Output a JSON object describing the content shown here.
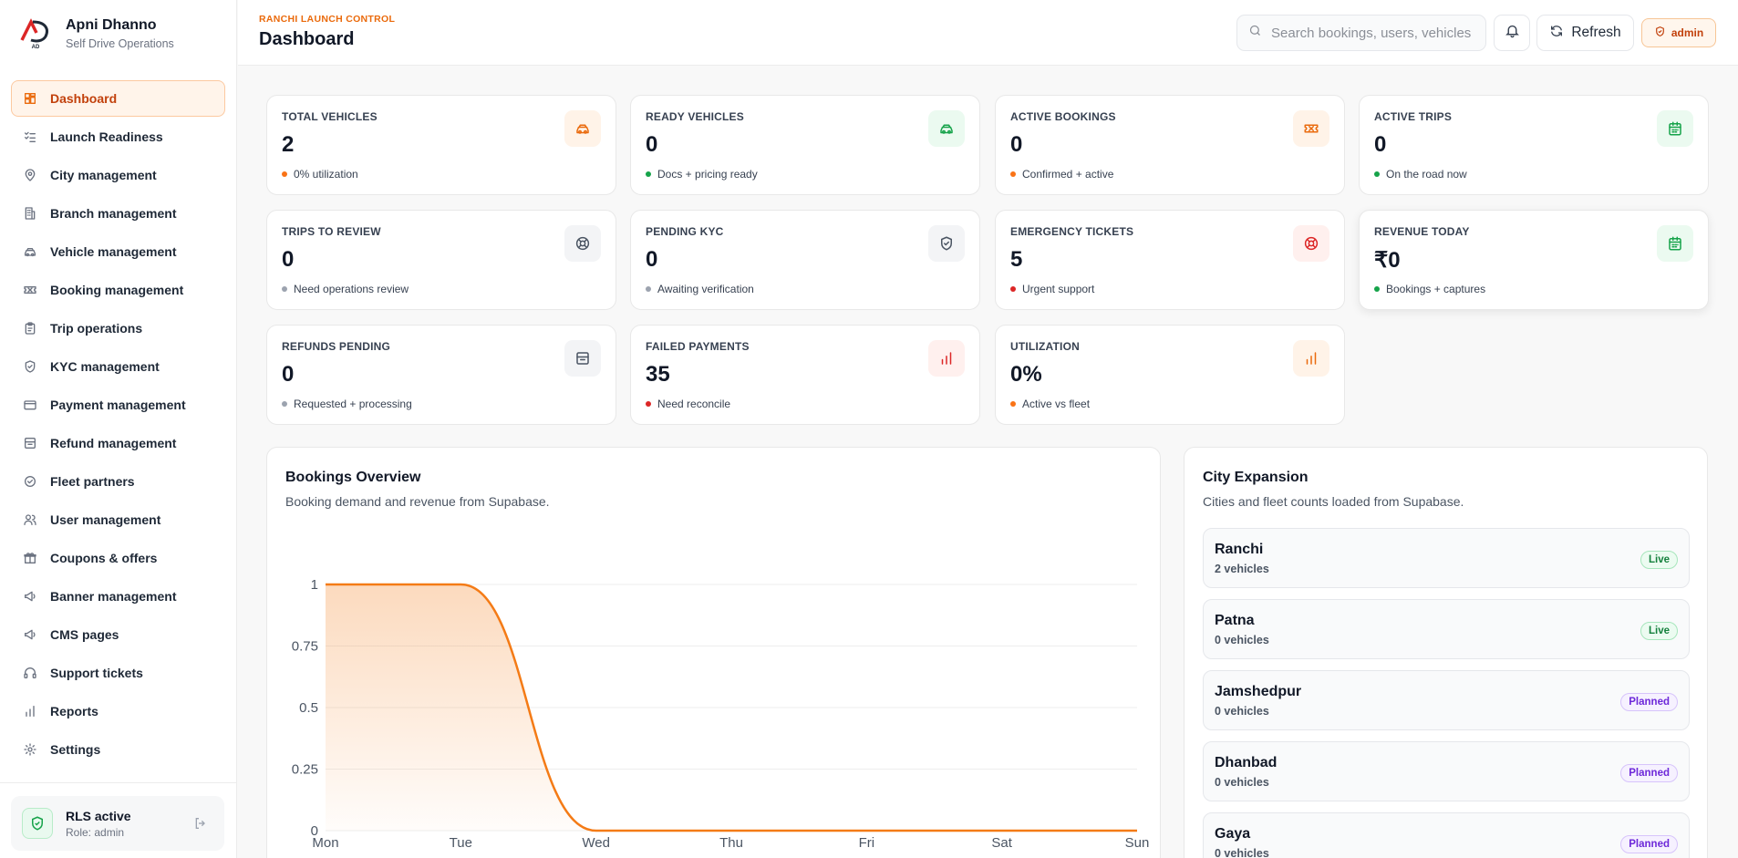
{
  "brand": {
    "name": "Apni Dhanno",
    "subtitle": "Self Drive Operations",
    "logo_text": "AD"
  },
  "sidebar": {
    "items": [
      {
        "label": "Dashboard",
        "icon": "dashboard-icon",
        "active": true
      },
      {
        "label": "Launch Readiness",
        "icon": "checklist-icon"
      },
      {
        "label": "City management",
        "icon": "map-pin-icon"
      },
      {
        "label": "Branch management",
        "icon": "building-icon"
      },
      {
        "label": "Vehicle management",
        "icon": "car-icon"
      },
      {
        "label": "Booking management",
        "icon": "ticket-icon"
      },
      {
        "label": "Trip operations",
        "icon": "clipboard-icon"
      },
      {
        "label": "KYC management",
        "icon": "shield-icon"
      },
      {
        "label": "Payment management",
        "icon": "credit-card-icon"
      },
      {
        "label": "Refund management",
        "icon": "archive-icon"
      },
      {
        "label": "Fleet partners",
        "icon": "check-circle-icon"
      },
      {
        "label": "User management",
        "icon": "users-icon"
      },
      {
        "label": "Coupons & offers",
        "icon": "gift-icon"
      },
      {
        "label": "Banner management",
        "icon": "megaphone-icon"
      },
      {
        "label": "CMS pages",
        "icon": "megaphone-icon"
      },
      {
        "label": "Support tickets",
        "icon": "headphones-icon"
      },
      {
        "label": "Reports",
        "icon": "bar-chart-icon"
      },
      {
        "label": "Settings",
        "icon": "gear-icon"
      }
    ],
    "footer": {
      "title": "RLS active",
      "subtitle": "Role: admin"
    }
  },
  "header": {
    "eyebrow": "RANCHI LAUNCH CONTROL",
    "title": "Dashboard",
    "search_placeholder": "Search bookings, users, vehicles",
    "refresh_label": "Refresh",
    "role_label": "admin"
  },
  "stats": [
    {
      "label": "TOTAL VEHICLES",
      "value": "2",
      "note": "0% utilization",
      "icon": "car-icon",
      "tone": "orange"
    },
    {
      "label": "READY VEHICLES",
      "value": "0",
      "note": "Docs + pricing ready",
      "icon": "car-icon",
      "tone": "green"
    },
    {
      "label": "ACTIVE BOOKINGS",
      "value": "0",
      "note": "Confirmed + active",
      "icon": "ticket-icon",
      "tone": "orange"
    },
    {
      "label": "ACTIVE TRIPS",
      "value": "0",
      "note": "On the road now",
      "icon": "calendar-icon",
      "tone": "green"
    },
    {
      "label": "TRIPS TO REVIEW",
      "value": "0",
      "note": "Need operations review",
      "icon": "lifebuoy-icon",
      "tone": "gray"
    },
    {
      "label": "PENDING KYC",
      "value": "0",
      "note": "Awaiting verification",
      "icon": "shield-icon",
      "tone": "gray"
    },
    {
      "label": "EMERGENCY TICKETS",
      "value": "5",
      "note": "Urgent support",
      "icon": "lifebuoy-icon",
      "tone": "red"
    },
    {
      "label": "REVENUE TODAY",
      "value": "₹0",
      "note": "Bookings + captures",
      "icon": "calendar-icon",
      "tone": "green"
    },
    {
      "label": "REFUNDS PENDING",
      "value": "0",
      "note": "Requested + processing",
      "icon": "archive-icon",
      "tone": "gray"
    },
    {
      "label": "FAILED PAYMENTS",
      "value": "35",
      "note": "Need reconcile",
      "icon": "bar-chart-icon",
      "tone": "red"
    },
    {
      "label": "UTILIZATION",
      "value": "0%",
      "note": "Active vs fleet",
      "icon": "bar-chart-icon",
      "tone": "orange"
    }
  ],
  "tones": {
    "orange": {
      "bg": "#fff3e8",
      "fg": "#ea6a0c",
      "dot": "#f97316"
    },
    "green": {
      "bg": "#ebfaf0",
      "fg": "#16a34a",
      "dot": "#16a34a"
    },
    "gray": {
      "bg": "#f3f4f6",
      "fg": "#4b5563",
      "dot": "#9ca3af"
    },
    "red": {
      "bg": "#fff0ee",
      "fg": "#dc2626",
      "dot": "#dc2626"
    }
  },
  "bookings_overview": {
    "title": "Bookings Overview",
    "subtitle": "Booking demand and revenue from Supabase."
  },
  "chart_data": {
    "type": "area",
    "categories": [
      "Mon",
      "Tue",
      "Wed",
      "Thu",
      "Fri",
      "Sat",
      "Sun"
    ],
    "series": [
      {
        "values": [
          1,
          1,
          0,
          0,
          0,
          0,
          0
        ]
      }
    ],
    "y_ticks": [
      "0",
      "0.25",
      "0.5",
      "0.75",
      "1"
    ],
    "ylim": [
      0,
      1
    ],
    "color": "#f47b16",
    "grid": true
  },
  "city_expansion": {
    "title": "City Expansion",
    "subtitle": "Cities and fleet counts loaded from Supabase.",
    "cities": [
      {
        "name": "Ranchi",
        "count": "2 vehicles",
        "status": "Live"
      },
      {
        "name": "Patna",
        "count": "0 vehicles",
        "status": "Live"
      },
      {
        "name": "Jamshedpur",
        "count": "0 vehicles",
        "status": "Planned"
      },
      {
        "name": "Dhanbad",
        "count": "0 vehicles",
        "status": "Planned"
      },
      {
        "name": "Gaya",
        "count": "0 vehicles",
        "status": "Planned"
      }
    ]
  }
}
